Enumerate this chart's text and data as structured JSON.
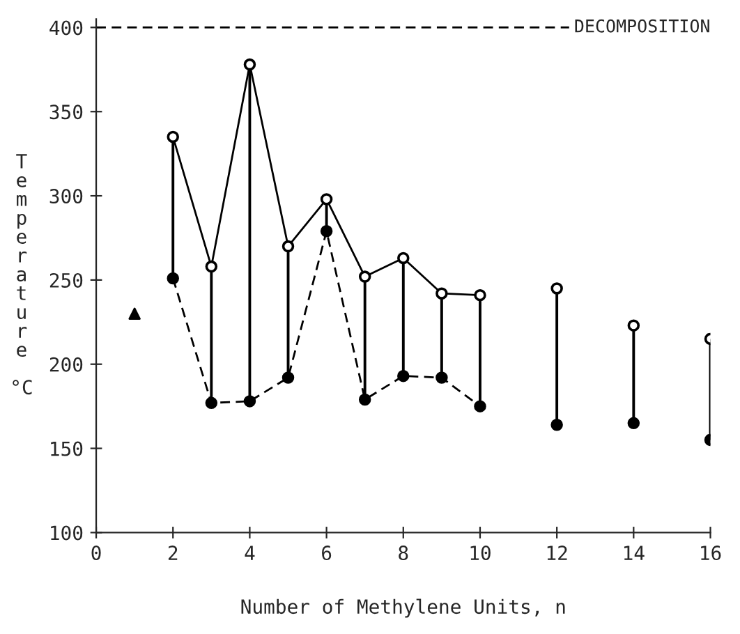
{
  "chart_data": {
    "type": "line",
    "xlabel": "Number of Methylene Units, n",
    "ylabel": "Temperature °C",
    "x": [
      2,
      3,
      4,
      5,
      6,
      7,
      8,
      9,
      10,
      11,
      12,
      13,
      14,
      15,
      16
    ],
    "series": [
      {
        "color": "#000000",
        "marker": "circle",
        "line_style": "solid",
        "values": [
          335,
          258,
          378,
          270,
          298,
          252,
          263,
          242,
          241,
          null,
          245,
          null,
          223,
          null,
          215
        ],
        "errors": [
          [
            251,
            335
          ],
          [
            177,
            258
          ],
          [
            178,
            378
          ],
          [
            192,
            270
          ],
          [
            279,
            298
          ],
          [
            179,
            252
          ],
          [
            193,
            263
          ],
          [
            192,
            242
          ],
          [
            175,
            241
          ],
          null,
          [
            164,
            245
          ],
          null,
          [
            165,
            223
          ],
          null,
          [
            155,
            215
          ]
        ]
      },
      {
        "color": "#000000",
        "marker": "circle",
        "line_style": "dashed",
        "values": [
          251,
          177,
          178,
          192,
          279,
          179,
          193,
          192,
          175,
          null,
          164,
          null,
          165,
          null,
          155
        ]
      },
      {
        "type": "scatter",
        "color": "#000000",
        "marker": "triangle",
        "x": [
          1
        ],
        "values": [
          230
        ]
      }
    ],
    "xlim": [
      0,
      16
    ],
    "xticks": [
      0,
      2,
      4,
      6,
      8,
      10,
      12,
      14,
      16
    ],
    "ylim": [
      100,
      405
    ],
    "yticks": [
      100,
      150,
      200,
      250,
      300,
      350,
      400
    ],
    "ref_lines": [
      {
        "axis": "y",
        "value": 400,
        "label": "DECOMPOSITION",
        "line_style": "dashed",
        "color": "#000000"
      }
    ],
    "grid": false,
    "legend": false
  }
}
